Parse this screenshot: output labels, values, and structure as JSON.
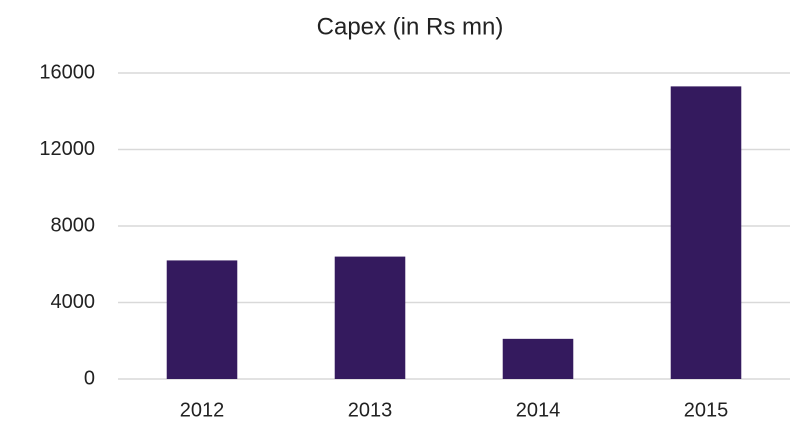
{
  "chart_data": {
    "type": "bar",
    "title": "Capex (in Rs mn)",
    "categories": [
      "2012",
      "2013",
      "2014",
      "2015"
    ],
    "values": [
      6200,
      6400,
      2100,
      15300
    ],
    "color": "#341a5e",
    "ylim": [
      0,
      16000
    ],
    "yticks": [
      0,
      4000,
      8000,
      12000,
      16000
    ],
    "grid": true
  }
}
